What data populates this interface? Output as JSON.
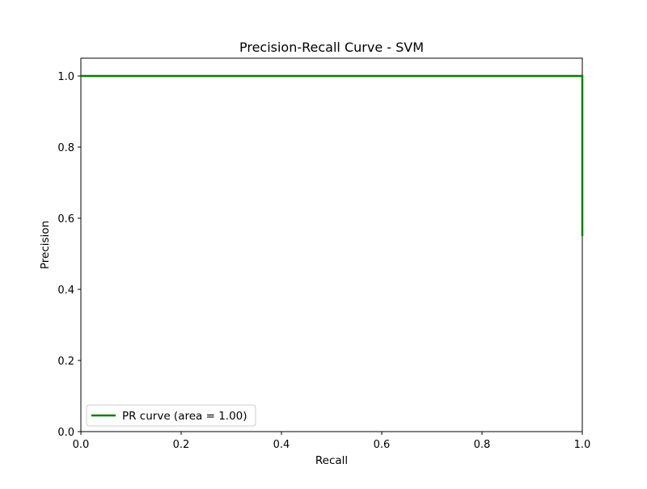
{
  "chart_data": {
    "type": "line",
    "title": "Precision-Recall Curve - SVM",
    "xlabel": "Recall",
    "ylabel": "Precision",
    "xlim": [
      0.0,
      1.0
    ],
    "ylim": [
      0.0,
      1.05
    ],
    "x_ticks": [
      "0.0",
      "0.2",
      "0.4",
      "0.6",
      "0.8",
      "1.0"
    ],
    "y_ticks": [
      "0.0",
      "0.2",
      "0.4",
      "0.6",
      "0.8",
      "1.0"
    ],
    "grid": false,
    "legend_position": "lower-left",
    "series": [
      {
        "name": "PR curve (area = 1.00)",
        "color": "#008000",
        "x": [
          0.0,
          1.0,
          1.0
        ],
        "y": [
          1.0,
          1.0,
          0.55
        ]
      }
    ]
  }
}
